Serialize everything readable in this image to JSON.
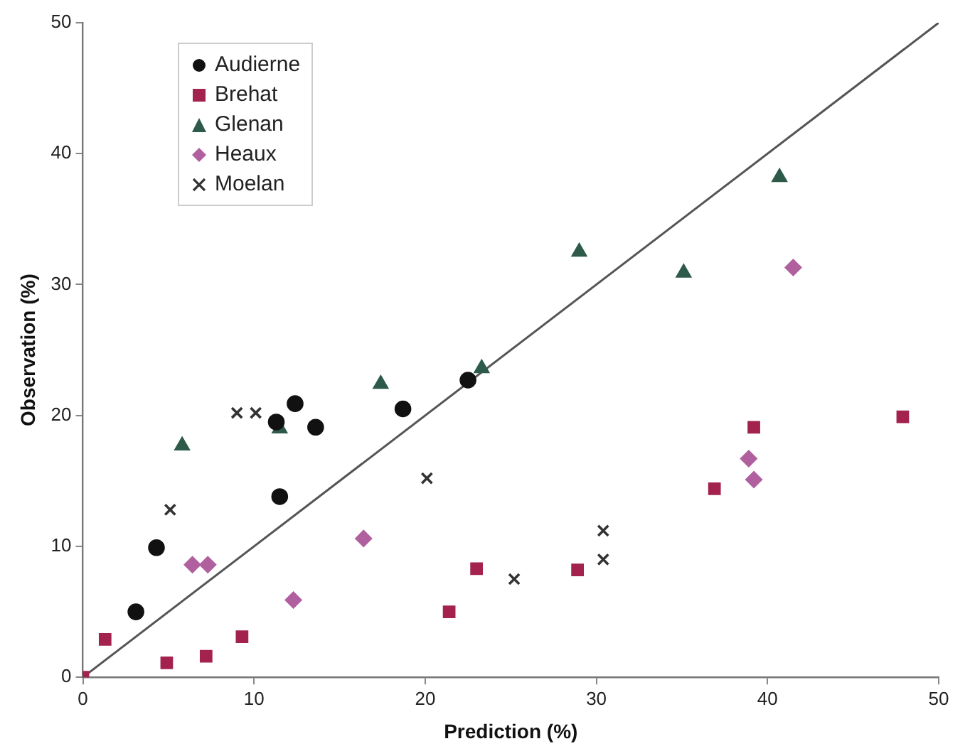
{
  "chart_data": {
    "type": "scatter",
    "xlabel": "Prediction (%)",
    "ylabel": "Observation (%)",
    "xlim": [
      0,
      50
    ],
    "ylim": [
      0,
      50
    ],
    "xticks": [
      0,
      10,
      20,
      30,
      40,
      50
    ],
    "yticks": [
      0,
      10,
      20,
      30,
      40,
      50
    ],
    "grid": false,
    "legend": "top left",
    "series": [
      {
        "name": "Audierne",
        "color": "#111111",
        "marker": "circle",
        "x": [
          12.4,
          18.7,
          13.6,
          11.3,
          22.5,
          11.5,
          4.3,
          3.1
        ],
        "values": [
          20.9,
          20.5,
          19.1,
          19.5,
          22.7,
          13.8,
          9.9,
          5.0
        ]
      },
      {
        "name": "Brehat",
        "color": "#a3224e",
        "marker": "square",
        "x": [
          0,
          1.3,
          4.9,
          7.2,
          9.3,
          21.4,
          23.0,
          28.9,
          36.9,
          39.2,
          47.9
        ],
        "values": [
          0,
          2.9,
          1.1,
          1.6,
          3.1,
          5.0,
          8.3,
          8.2,
          14.4,
          19.1,
          19.9
        ]
      },
      {
        "name": "Glenan",
        "color": "#2e5a4a",
        "marker": "triangle",
        "x": [
          5.8,
          17.4,
          23.3,
          11.5,
          29.0,
          35.1,
          40.7
        ],
        "values": [
          17.7,
          22.4,
          23.6,
          19.0,
          32.5,
          30.9,
          38.2
        ]
      },
      {
        "name": "Heaux",
        "color": "#b0609e",
        "marker": "diamond",
        "x": [
          6.4,
          7.3,
          12.3,
          16.4,
          41.5,
          38.9,
          39.2
        ],
        "values": [
          8.6,
          8.6,
          5.9,
          10.6,
          31.3,
          16.7,
          15.1
        ]
      },
      {
        "name": "Moelan",
        "color": "#333333",
        "marker": "cross",
        "x": [
          5.1,
          9.0,
          10.1,
          20.1,
          25.2,
          30.4,
          30.4
        ],
        "values": [
          12.8,
          20.2,
          20.2,
          15.2,
          7.5,
          11.2,
          9.0
        ]
      },
      {
        "type": "line",
        "color": "#555555",
        "marker": "none",
        "line_style": "solid",
        "x": [
          0,
          50
        ],
        "values": [
          0,
          50
        ]
      }
    ]
  }
}
